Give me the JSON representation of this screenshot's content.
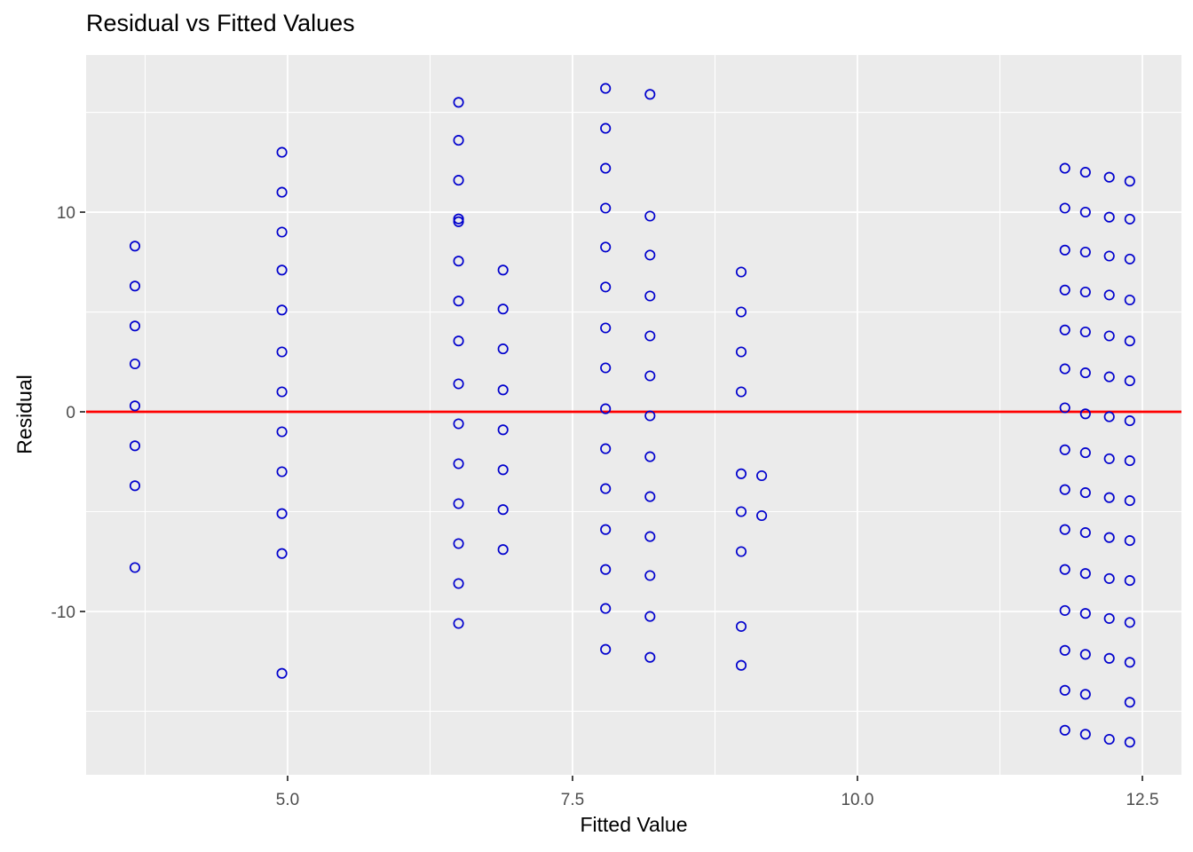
{
  "chart_data": {
    "type": "scatter",
    "title": "Residual vs Fitted Values",
    "xlabel": "Fitted Value",
    "ylabel": "Residual",
    "xlim": [
      3.232,
      12.843
    ],
    "ylim": [
      -18.18,
      17.87
    ],
    "x_major_ticks": [
      5.0,
      7.5,
      10.0,
      12.5
    ],
    "x_tick_labels": [
      "5.0",
      "7.5",
      "10.0",
      "12.5"
    ],
    "x_minor_ticks": [
      3.75,
      6.25,
      8.75,
      11.25
    ],
    "y_major_ticks": [
      10,
      0,
      -10
    ],
    "y_tick_labels": [
      "10",
      "0",
      "-10"
    ],
    "y_minor_ticks": [
      15,
      5,
      -5,
      -15
    ],
    "grid": true,
    "legend": "none",
    "panel_bg": "#EBEBEB",
    "grid_color": "#FFFFFF",
    "tick_color": "#333333",
    "tick_label_color": "#4D4D4D",
    "point_color": "#0000CD",
    "refline": {
      "y": 0,
      "color": "#FF0000"
    },
    "series": [
      {
        "fitted": 3.66,
        "residuals": [
          8.3,
          6.3,
          4.3,
          2.4,
          0.3,
          -1.7,
          -3.7,
          -7.8
        ]
      },
      {
        "fitted": 4.95,
        "residuals": [
          13.0,
          11.0,
          9.0,
          7.1,
          5.1,
          3.0,
          1.0,
          -1.0,
          -3.0,
          -5.1,
          -7.1,
          -13.1
        ]
      },
      {
        "fitted": 6.5,
        "residuals": [
          15.5,
          13.6,
          11.6,
          9.66,
          9.52,
          7.55,
          5.55,
          3.55,
          1.4,
          -0.6,
          -2.6,
          -4.6,
          -6.6,
          -8.6,
          -10.6
        ]
      },
      {
        "fitted": 6.89,
        "residuals": [
          7.1,
          5.15,
          3.15,
          1.1,
          -0.9,
          -2.9,
          -4.9,
          -6.9
        ]
      },
      {
        "fitted": 7.79,
        "residuals": [
          16.2,
          14.2,
          12.2,
          10.2,
          8.25,
          6.25,
          4.2,
          2.2,
          0.15,
          -1.85,
          -3.85,
          -5.9,
          -7.9,
          -9.85,
          -11.9
        ]
      },
      {
        "fitted": 8.18,
        "residuals": [
          15.9,
          9.8,
          7.85,
          5.8,
          3.8,
          1.8,
          -0.2,
          -2.25,
          -4.25,
          -6.25,
          -8.2,
          -10.25,
          -12.3
        ]
      },
      {
        "fitted": 8.98,
        "residuals": [
          7.0,
          5.0,
          3.0,
          1.0,
          -3.1,
          -5.0,
          -7.0,
          -10.75,
          -12.7
        ]
      },
      {
        "fitted": 9.16,
        "residuals": [
          -3.2,
          -5.2
        ]
      },
      {
        "fitted": 11.82,
        "residuals": [
          12.2,
          10.2,
          8.1,
          6.1,
          4.1,
          2.15,
          0.2,
          -1.9,
          -3.9,
          -5.9,
          -7.9,
          -9.95,
          -11.95,
          -13.95,
          -15.95
        ]
      },
      {
        "fitted": 12.0,
        "residuals": [
          12.0,
          10.0,
          8.0,
          6.0,
          4.0,
          1.95,
          -0.1,
          -2.05,
          -4.05,
          -6.05,
          -8.1,
          -10.1,
          -12.15,
          -14.15,
          -16.15
        ]
      },
      {
        "fitted": 12.21,
        "residuals": [
          11.75,
          9.75,
          7.8,
          5.85,
          3.8,
          1.75,
          -0.25,
          -2.35,
          -4.3,
          -6.3,
          -8.35,
          -10.35,
          -12.35,
          -16.4
        ]
      },
      {
        "fitted": 12.39,
        "residuals": [
          11.55,
          9.65,
          7.65,
          5.6,
          3.55,
          1.55,
          -0.45,
          -2.45,
          -4.45,
          -6.45,
          -8.45,
          -10.55,
          -12.55,
          -14.55,
          -16.55
        ]
      }
    ]
  }
}
